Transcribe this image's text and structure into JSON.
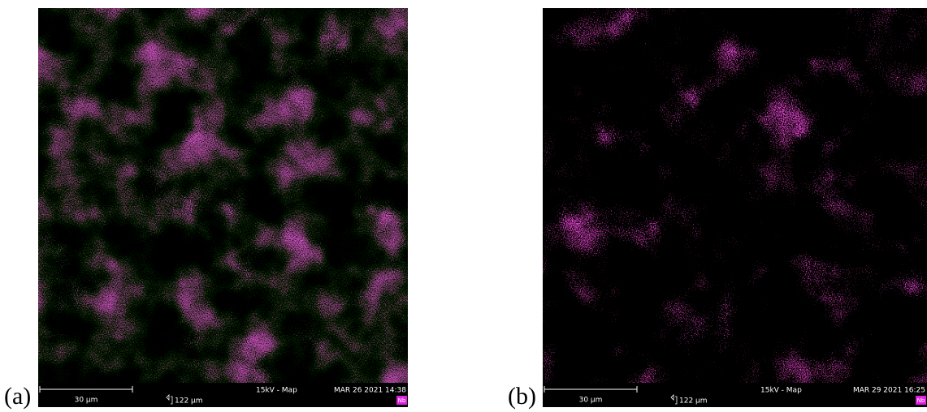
{
  "panels": [
    {
      "label": "(a)",
      "scale_bar": "30 μm",
      "field_width": "122 μm",
      "mode": "15kV - Map",
      "date": "MAR 26 2021 14:38",
      "element": "Nb"
    },
    {
      "label": "(b)",
      "scale_bar": "30 μm",
      "field_width": "122 μm",
      "mode": "15kV - Map",
      "date": "MAR 29 2021 16:25",
      "element": "Nb"
    }
  ]
}
